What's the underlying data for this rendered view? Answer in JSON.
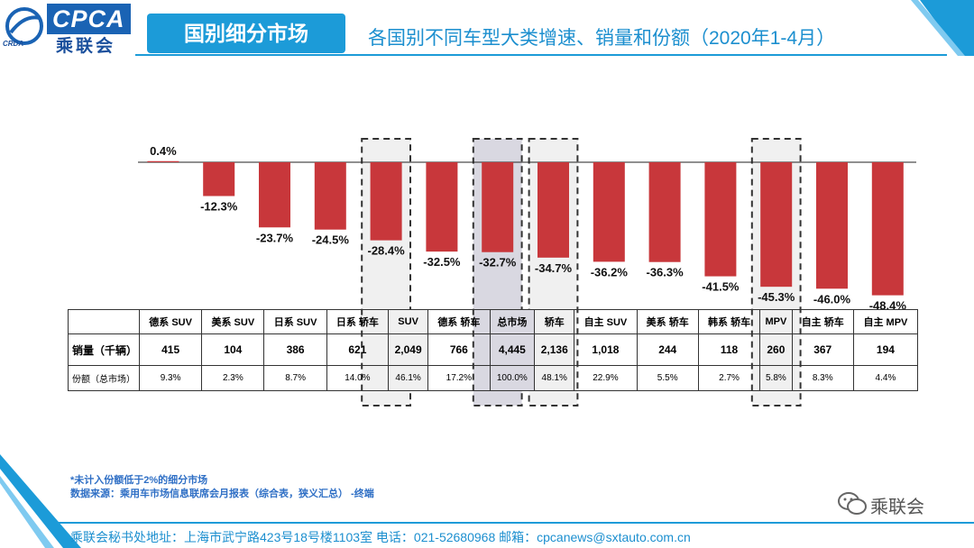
{
  "header": {
    "logo_text": "CPCA",
    "logo_cn": "乘联会",
    "logo_small": "CRDA",
    "title": "国别细分市场",
    "subtitle": "各国别不同车型大类增速、销量和份额（2020年1-4月）"
  },
  "colors": {
    "accent": "#1c9bd8",
    "bar": "#c8373b",
    "highlight_bg": "#f0f0f0",
    "highlight_dark_bg": "#d9d8e1"
  },
  "chart_data": {
    "type": "bar",
    "categories": [
      "德系 SUV",
      "美系 SUV",
      "日系 SUV",
      "日系 轿车",
      "SUV",
      "德系 轿车",
      "总市场",
      "轿车",
      "自主 SUV",
      "美系 轿车",
      "韩系 轿车",
      "MPV",
      "自主 轿车",
      "自主 MPV"
    ],
    "values": [
      0.4,
      -12.3,
      -23.7,
      -24.5,
      -28.4,
      -32.5,
      -32.7,
      -34.7,
      -36.2,
      -36.3,
      -41.5,
      -45.3,
      -46.0,
      -48.4
    ],
    "value_labels": [
      "0.4%",
      "-12.3%",
      "-23.7%",
      "-24.5%",
      "-28.4%",
      "-32.5%",
      "-32.7%",
      "-34.7%",
      "-36.2%",
      "-36.3%",
      "-41.5%",
      "-45.3%",
      "-46.0%",
      "-48.4%"
    ],
    "highlighted": [
      "SUV",
      "总市场",
      "轿车",
      "MPV"
    ],
    "ylim": [
      -50,
      5
    ]
  },
  "table": {
    "rows": [
      {
        "label": "销量（千辆）",
        "values": [
          "415",
          "104",
          "386",
          "621",
          "2,049",
          "766",
          "4,445",
          "2,136",
          "1,018",
          "244",
          "118",
          "260",
          "367",
          "194"
        ]
      },
      {
        "label": "份额（总市场）",
        "values": [
          "9.3%",
          "2.3%",
          "8.7%",
          "14.0%",
          "46.1%",
          "17.2%",
          "100.0%",
          "48.1%",
          "22.9%",
          "5.5%",
          "2.7%",
          "5.8%",
          "8.3%",
          "4.4%"
        ]
      }
    ]
  },
  "notes": {
    "line1": "*未计入份额低于2%的细分市场",
    "line2": "数据来源：乘用车市场信息联席会月报表（综合表，狭义汇总）   -终端"
  },
  "footer": {
    "text": "乘联会秘书处地址：上海市武宁路423号18号楼1103室  电话：021-52680968   邮箱：cpcanews@sxtauto.com.cn"
  },
  "wechat": {
    "label": "乘联会"
  }
}
